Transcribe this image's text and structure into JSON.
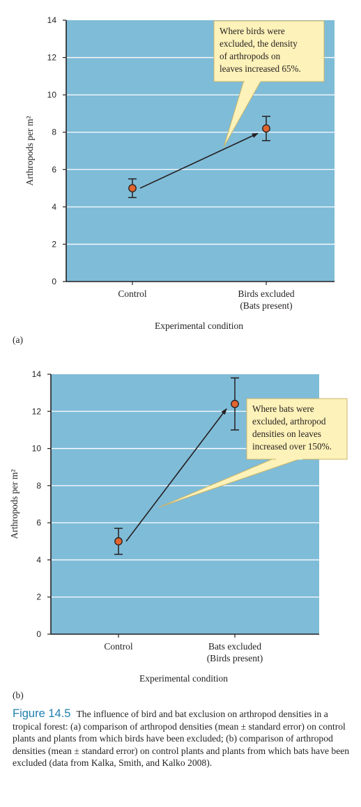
{
  "chart_data": [
    {
      "type": "scatter",
      "panel_label": "(a)",
      "categories": [
        "Control",
        "Birds excluded\n(Bats present)"
      ],
      "values": [
        5.0,
        8.2
      ],
      "error": [
        0.5,
        0.65
      ],
      "xlabel": "Experimental condition",
      "ylabel": "Arthropods per m²",
      "ylim": [
        0,
        14
      ],
      "yticks": [
        0,
        2,
        4,
        6,
        8,
        10,
        12,
        14
      ],
      "grid": true,
      "callout": "Where birds were\nexcluded, the density\nof arthropods on\nleaves increased 65%."
    },
    {
      "type": "scatter",
      "panel_label": "(b)",
      "categories": [
        "Control",
        "Bats excluded\n(Birds present)"
      ],
      "values": [
        5.0,
        12.4
      ],
      "error": [
        0.7,
        1.4
      ],
      "xlabel": "Experimental condition",
      "ylabel": "Arthropods per m²",
      "ylim": [
        0,
        14
      ],
      "yticks": [
        0,
        2,
        4,
        6,
        8,
        10,
        12,
        14
      ],
      "grid": true,
      "callout": "Where bats were\nexcluded, arthropod\ndensities on leaves\nincreased over 150%."
    }
  ],
  "colors": {
    "plot_bg": "#7fbcd8",
    "grid": "#ffffff",
    "point": "#e2652f",
    "callout_bg": "#fdf2b9",
    "callout_border": "#c9b56a",
    "caption_label": "#1f7fae"
  },
  "caption": {
    "label": "Figure 14.5",
    "text": "The influence of bird and bat exclusion on arthropod densities in a tropical forest: (a) comparison of arthropod densities (mean ± standard error) on control plants and plants from which birds have been excluded; (b) comparison of arthropod densities (mean ± standard error) on control plants and plants from which bats have been excluded (data from Kalka, Smith, and Kalko 2008)."
  }
}
